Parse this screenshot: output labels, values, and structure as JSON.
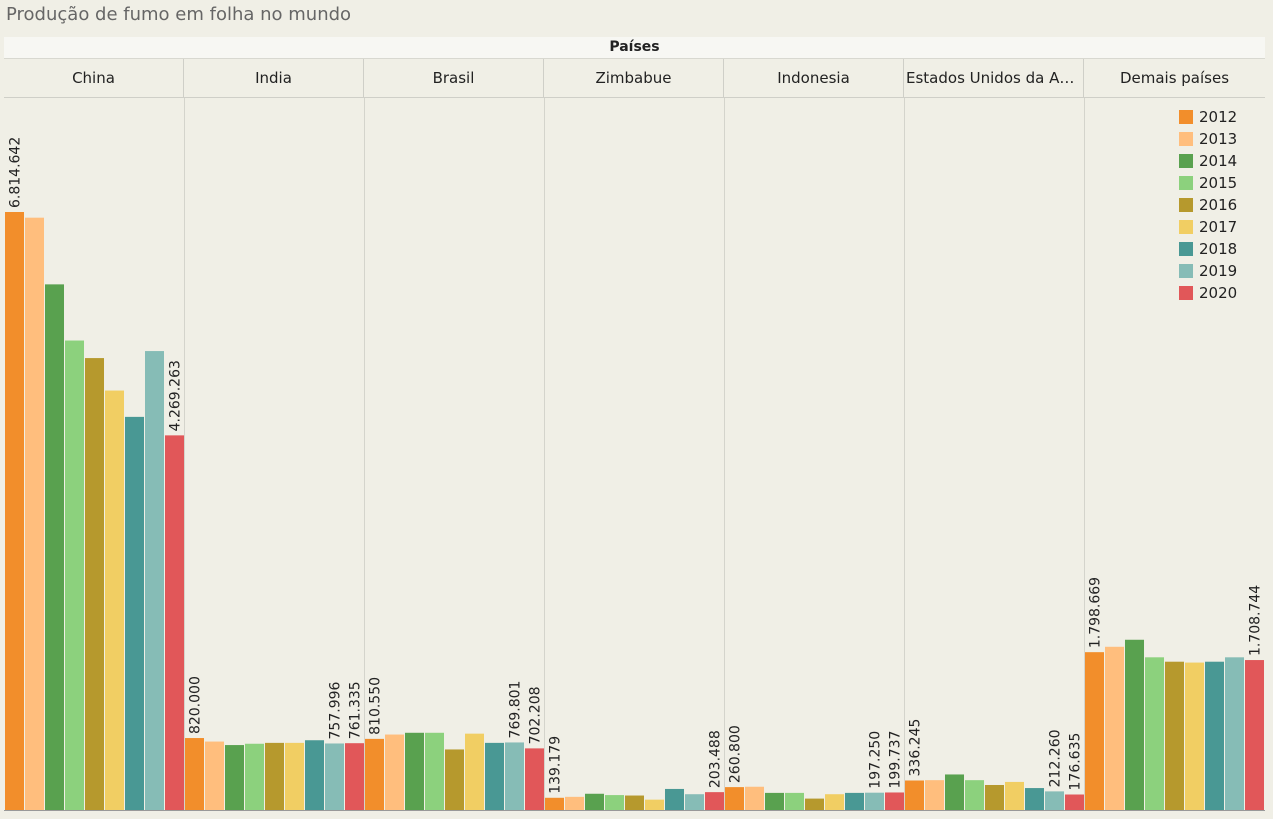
{
  "title": "Produção de fumo em folha no mundo",
  "chart_data": {
    "type": "bar",
    "title": "Produção de fumo em folha no mundo",
    "header": "Países",
    "categories": [
      "China",
      "India",
      "Brasil",
      "Zimbabue",
      "Indonesia",
      "Estados Unidos da Am..",
      "Demais países"
    ],
    "years": [
      "2012",
      "2013",
      "2014",
      "2015",
      "2016",
      "2017",
      "2018",
      "2019",
      "2020"
    ],
    "colors": [
      "#f28e2b",
      "#ffbe7d",
      "#59a14f",
      "#8cd17d",
      "#b6992d",
      "#f1ce63",
      "#499894",
      "#86bcb6",
      "#e15759"
    ],
    "ylim": [
      0,
      7000000
    ],
    "values": [
      [
        6814642,
        6750000,
        5990000,
        5350000,
        5150000,
        4780000,
        4480000,
        5230000,
        4269263
      ],
      [
        820000,
        780000,
        740000,
        755000,
        765000,
        765000,
        795000,
        757996,
        761335
      ],
      [
        810550,
        860000,
        880000,
        880000,
        690000,
        870000,
        765000,
        769801,
        702208
      ],
      [
        139179,
        150000,
        185000,
        170000,
        165000,
        118000,
        240000,
        180000,
        203488
      ],
      [
        260800,
        265000,
        195000,
        195000,
        130000,
        180000,
        195000,
        197250,
        199737
      ],
      [
        336245,
        340000,
        405000,
        340000,
        285000,
        320000,
        250000,
        212260,
        176635
      ],
      [
        1798669,
        1860000,
        1940000,
        1740000,
        1690000,
        1680000,
        1690000,
        1740000,
        1708744
      ]
    ],
    "labels": [
      [
        [
          "0",
          "6.814.642"
        ],
        [
          "8",
          "4.269.263"
        ]
      ],
      [
        [
          "0",
          "820.000"
        ],
        [
          "7",
          "757.996"
        ],
        [
          "8",
          "761.335"
        ]
      ],
      [
        [
          "0",
          "810.550"
        ],
        [
          "7",
          "769.801"
        ],
        [
          "8",
          "702.208"
        ]
      ],
      [
        [
          "0",
          "139.179"
        ],
        [
          "8",
          "203.488"
        ]
      ],
      [
        [
          "0",
          "260.800"
        ],
        [
          "7",
          "197.250"
        ],
        [
          "8",
          "199.737"
        ]
      ],
      [
        [
          "0",
          "336.245"
        ],
        [
          "7",
          "212.260"
        ],
        [
          "8",
          "176.635"
        ]
      ],
      [
        [
          "0",
          "1.798.669"
        ],
        [
          "8",
          "1.708.744"
        ]
      ]
    ]
  }
}
